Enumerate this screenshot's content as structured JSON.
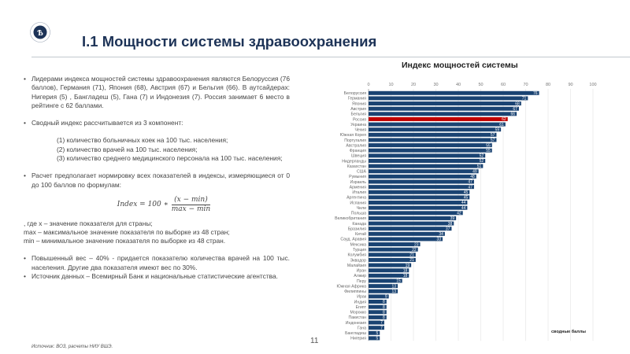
{
  "header": {
    "title": "I.1 Мощности системы здравоохранения",
    "logo_text": "ВШЭ"
  },
  "body": {
    "bullet1": "Лидерами индекса мощностей системы здравоохранения являются Белоруссия (76 баллов), Германия (71), Япония (68), Австрия (67) и Бельгия (66). В аутсайдерах: Нигерия (5) , Бангладеш (5), Гана (7) и Индонезия (7). Россия занимает 6 место в рейтинге с 62 баллами.",
    "bullet2": "Сводный индекс рассчитывается из 3 компонент:",
    "components": [
      "(1) количество больничных коек на 100 тыс. населения;",
      "(2) количество врачей на 100 тыс. населения;",
      "(3) количество среднего медицинского персонала на 100 тыс. населения;"
    ],
    "bullet3": "Расчет предполагает нормировку всех показателей в индексы, измеряющиеся от 0 до 100 баллов по формулам:",
    "formula_left": "Index = 100 ∗",
    "formula_num": "(x − min)",
    "formula_den": "max − min",
    "where": [
      ", где x – значение показателя для страны;",
      "max – максимальное значение показателя по выборке из 48 стран;",
      "min – минимальное значение показателя по выборке из 48 стран."
    ],
    "bullet4": "Повышенный вес – 40% - придается показателю количества врачей на 100 тыс. населения. Другие два показателя имеют вес по 30%.",
    "bullet5": "Источник данных – Всемирный Банк и национальные статистические агентства."
  },
  "footer": {
    "page_number": "11",
    "source": "Источник: ВОЗ, расчеты НИУ ВШЭ."
  },
  "colors": {
    "bar": "#1a4372",
    "highlight": "#c00000",
    "title": "#1d3357"
  },
  "chart_data": {
    "type": "bar",
    "orientation": "horizontal",
    "title": "Индекс мощностей системы",
    "xlabel": "сводные баллы",
    "xlim": [
      0,
      100
    ],
    "xticks": [
      0,
      10,
      20,
      30,
      40,
      50,
      60,
      70,
      80,
      90,
      100
    ],
    "grid": true,
    "highlight": "Россия",
    "categories": [
      "Белоруссия",
      "Германия",
      "Япония",
      "Австрия",
      "Бельгия",
      "Россия",
      "Украина",
      "Чехия",
      "Южная Корея",
      "Португалия",
      "Австралия",
      "Франция",
      "Швеция",
      "Нидерланды",
      "Казахстан",
      "США",
      "Румыния",
      "Израиль",
      "Армения",
      "Италия",
      "Аргентина",
      "Испания",
      "Чили",
      "Польша",
      "Великобритания",
      "Канада",
      "Бразилия",
      "Китай",
      "Сауд. Аравия",
      "Мексика",
      "Турция",
      "Колумбия",
      "Эквадор",
      "Малайзия",
      "Иран",
      "Алжир",
      "Перу",
      "Южная Африка",
      "Филиппины",
      "Ирак",
      "Индия",
      "Египт",
      "Морокко",
      "Пакистан",
      "Индонезия",
      "Гана",
      "Бангладеш",
      "Нигерия"
    ],
    "values": [
      76,
      71,
      68,
      67,
      66,
      62,
      61,
      59,
      57,
      57,
      55,
      55,
      52,
      52,
      51,
      49,
      48,
      47,
      47,
      45,
      45,
      44,
      44,
      42,
      39,
      38,
      37,
      34,
      33,
      23,
      22,
      21,
      21,
      19,
      18,
      18,
      15,
      13,
      13,
      9,
      8,
      8,
      8,
      8,
      7,
      7,
      5,
      5
    ]
  }
}
